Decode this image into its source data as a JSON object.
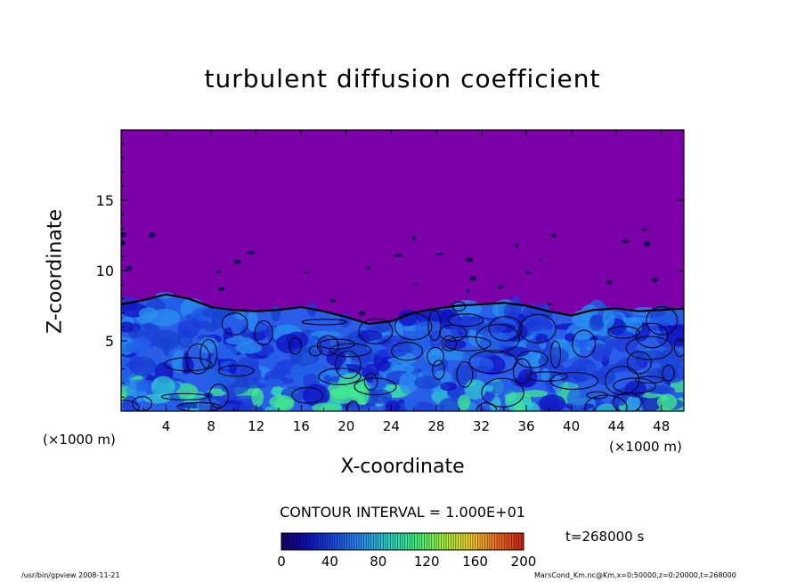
{
  "chart_data": {
    "type": "heatmap",
    "title": "turbulent diffusion coefficient",
    "xlabel": "X-coordinate",
    "ylabel": "Z-coordinate",
    "x_unit": "(×1000 m)",
    "xlim": [
      0,
      50
    ],
    "ylim": [
      0,
      20
    ],
    "x_ticks": [
      4,
      8,
      12,
      16,
      20,
      24,
      28,
      32,
      36,
      40,
      44,
      48
    ],
    "y_ticks": [
      5,
      10,
      15
    ],
    "contour_interval": "CONTOUR INTERVAL = 1.000E+01",
    "colorbar": {
      "ticks": [
        0,
        40,
        80,
        120,
        160,
        200
      ],
      "range": [
        0,
        200
      ]
    },
    "time_label": "t=268000 s",
    "turbulent_layer_top": [
      [
        0,
        7.6
      ],
      [
        2,
        7.9
      ],
      [
        4,
        8.3
      ],
      [
        6,
        8.0
      ],
      [
        8,
        7.4
      ],
      [
        10,
        7.2
      ],
      [
        12,
        7.1
      ],
      [
        14,
        7.2
      ],
      [
        16,
        7.4
      ],
      [
        18,
        7.1
      ],
      [
        20,
        6.7
      ],
      [
        22,
        6.2
      ],
      [
        24,
        6.4
      ],
      [
        26,
        7.0
      ],
      [
        28,
        7.3
      ],
      [
        30,
        7.5
      ],
      [
        32,
        7.6
      ],
      [
        34,
        7.7
      ],
      [
        36,
        7.5
      ],
      [
        38,
        7.1
      ],
      [
        40,
        6.8
      ],
      [
        42,
        7.2
      ],
      [
        44,
        7.3
      ],
      [
        46,
        7.1
      ],
      [
        48,
        7.2
      ],
      [
        50,
        7.3
      ]
    ],
    "background_color": "#7B00A8",
    "colormap": [
      "#1a0060",
      "#1010c0",
      "#1e50e0",
      "#2a90f0",
      "#30d0c0",
      "#40f080",
      "#a0f040",
      "#f0d030",
      "#f07020",
      "#d02010"
    ]
  },
  "footer": {
    "left": "/usr/bin/gpview   2008-11-21",
    "right": "MarsCond_Km.nc@Km,x=0:50000,z=0:20000,t=268000"
  }
}
